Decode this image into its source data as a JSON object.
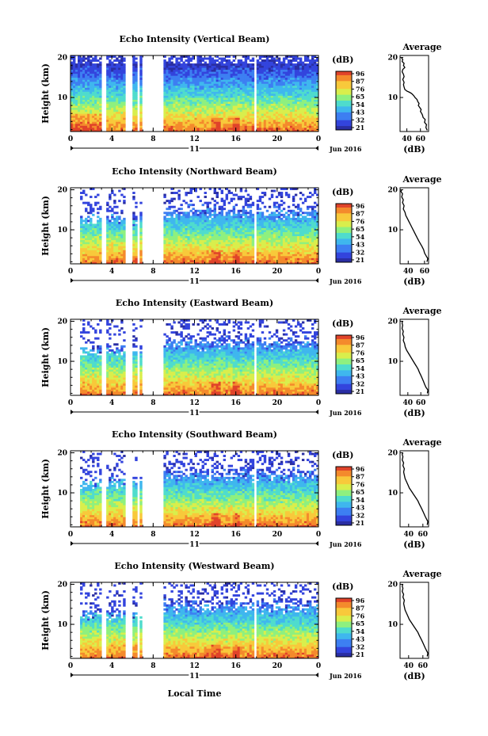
{
  "chart_data": [
    {
      "type": "heatmap",
      "title": "Echo Intensity (Vertical Beam)",
      "ylabel": "Height (km)",
      "x_ticks": [
        "0",
        "4",
        "8",
        "12",
        "16",
        "20",
        "0"
      ],
      "y_ticks": [
        "10",
        "20"
      ],
      "xlim": [
        0,
        24
      ],
      "ylim": [
        1.5,
        20.5
      ],
      "date_day": "11",
      "date_label": "Jun 2016",
      "colorbar": {
        "unit": "(dB)",
        "ticks": [
          "96",
          "87",
          "76",
          "65",
          "54",
          "43",
          "32",
          "21"
        ]
      },
      "missing_ranges": [
        [
          3.0,
          3.5
        ],
        [
          5.2,
          5.9
        ],
        [
          6.4,
          6.7
        ],
        [
          7.0,
          9.0
        ],
        [
          17.8,
          18.1
        ]
      ],
      "profile": {
        "title": "Average",
        "xlabel": "(dB)",
        "x_ticks": [
          "40",
          "60"
        ],
        "y_ticks": [
          "10",
          "20"
        ],
        "xlim": [
          30,
          72
        ],
        "points": [
          [
            70,
            1.8
          ],
          [
            68,
            2.5
          ],
          [
            69,
            3.2
          ],
          [
            66,
            3.8
          ],
          [
            67,
            4.5
          ],
          [
            64,
            5
          ],
          [
            63,
            5.6
          ],
          [
            62,
            6
          ],
          [
            60,
            6.5
          ],
          [
            61,
            7
          ],
          [
            59,
            7.5
          ],
          [
            57,
            8
          ],
          [
            58,
            8.5
          ],
          [
            56,
            9
          ],
          [
            55,
            9.5
          ],
          [
            52,
            10
          ],
          [
            50,
            10.5
          ],
          [
            47,
            11
          ],
          [
            44,
            11.3
          ],
          [
            40,
            11.6
          ],
          [
            37,
            12
          ],
          [
            36,
            12.6
          ],
          [
            35,
            13.2
          ],
          [
            36,
            13.8
          ],
          [
            34,
            14.5
          ],
          [
            36,
            15.2
          ],
          [
            35,
            15.8
          ],
          [
            33,
            16.4
          ],
          [
            34,
            17
          ],
          [
            37,
            17.5
          ],
          [
            35,
            18
          ],
          [
            36,
            18.5
          ],
          [
            33,
            19
          ],
          [
            34,
            19.5
          ],
          [
            32,
            20
          ]
        ]
      }
    },
    {
      "type": "heatmap",
      "title": "Echo Intensity (Northward Beam)",
      "ylabel": "Height (km)",
      "x_ticks": [
        "0",
        "4",
        "8",
        "12",
        "16",
        "20",
        "0"
      ],
      "y_ticks": [
        "10",
        "20"
      ],
      "xlim": [
        0,
        24
      ],
      "ylim": [
        1.5,
        20.5
      ],
      "date_day": "11",
      "date_label": "Jun 2016",
      "colorbar": {
        "unit": "(dB)",
        "ticks": [
          "96",
          "87",
          "76",
          "65",
          "54",
          "43",
          "32",
          "21"
        ]
      },
      "missing_ranges": [
        [
          3.0,
          3.5
        ],
        [
          5.2,
          5.9
        ],
        [
          6.4,
          6.7
        ],
        [
          7.0,
          9.0
        ],
        [
          17.8,
          18.1
        ]
      ],
      "profile": {
        "title": "Average",
        "xlabel": "(dB)",
        "x_ticks": [
          "40",
          "60"
        ],
        "y_ticks": [
          "10",
          "20"
        ],
        "xlim": [
          30,
          65
        ],
        "points": [
          [
            63,
            2
          ],
          [
            64,
            2.8
          ],
          [
            62,
            3.5
          ],
          [
            60,
            4.2
          ],
          [
            59,
            5
          ],
          [
            57,
            5.8
          ],
          [
            55,
            6.5
          ],
          [
            53,
            7.2
          ],
          [
            51,
            8
          ],
          [
            49,
            8.8
          ],
          [
            47,
            9.6
          ],
          [
            45,
            10.4
          ],
          [
            43,
            11.2
          ],
          [
            41,
            12
          ],
          [
            39,
            12.8
          ],
          [
            37,
            13.6
          ],
          [
            36,
            14.4
          ],
          [
            34,
            15.2
          ],
          [
            35,
            16
          ],
          [
            33,
            16.8
          ],
          [
            34,
            17.5
          ],
          [
            32,
            18.2
          ],
          [
            33,
            19
          ],
          [
            31,
            19.6
          ],
          [
            32,
            20
          ]
        ]
      }
    },
    {
      "type": "heatmap",
      "title": "Echo Intensity (Eastward Beam)",
      "ylabel": "Height (km)",
      "x_ticks": [
        "0",
        "4",
        "8",
        "12",
        "16",
        "20",
        "0"
      ],
      "y_ticks": [
        "10",
        "20"
      ],
      "xlim": [
        0,
        24
      ],
      "ylim": [
        1.5,
        20.5
      ],
      "date_day": "11",
      "date_label": "Jun 2016",
      "colorbar": {
        "unit": "(dB)",
        "ticks": [
          "96",
          "87",
          "76",
          "65",
          "54",
          "43",
          "32",
          "21"
        ]
      },
      "missing_ranges": [
        [
          3.0,
          3.5
        ],
        [
          5.2,
          5.9
        ],
        [
          6.4,
          6.7
        ],
        [
          7.0,
          9.0
        ],
        [
          17.8,
          18.1
        ]
      ],
      "profile": {
        "title": "Average",
        "xlabel": "(dB)",
        "x_ticks": [
          "40",
          "60"
        ],
        "y_ticks": [
          "10",
          "20"
        ],
        "xlim": [
          28,
          72
        ],
        "points": [
          [
            70,
            2
          ],
          [
            71,
            2.8
          ],
          [
            68,
            3.5
          ],
          [
            66,
            4.2
          ],
          [
            64,
            5
          ],
          [
            62,
            5.8
          ],
          [
            60,
            6.5
          ],
          [
            58,
            7.2
          ],
          [
            56,
            8
          ],
          [
            53,
            8.8
          ],
          [
            50,
            9.6
          ],
          [
            47,
            10.4
          ],
          [
            44,
            11.2
          ],
          [
            41,
            12
          ],
          [
            38,
            12.8
          ],
          [
            36,
            13.6
          ],
          [
            35,
            14.4
          ],
          [
            33,
            15.2
          ],
          [
            34,
            16
          ],
          [
            32,
            16.8
          ],
          [
            33,
            17.5
          ],
          [
            31,
            18.2
          ],
          [
            32,
            19
          ],
          [
            31,
            19.6
          ],
          [
            32,
            20
          ]
        ]
      }
    },
    {
      "type": "heatmap",
      "title": "Echo Intensity (Southward Beam)",
      "ylabel": "Height (km)",
      "x_ticks": [
        "0",
        "4",
        "8",
        "12",
        "16",
        "20",
        "0"
      ],
      "y_ticks": [
        "10",
        "20"
      ],
      "xlim": [
        0,
        24
      ],
      "ylim": [
        1.5,
        20.5
      ],
      "date_day": "11",
      "date_label": "Jun 2016",
      "colorbar": {
        "unit": "(dB)",
        "ticks": [
          "96",
          "87",
          "76",
          "65",
          "54",
          "43",
          "32",
          "21"
        ]
      },
      "missing_ranges": [
        [
          3.0,
          3.5
        ],
        [
          5.2,
          5.9
        ],
        [
          6.4,
          6.7
        ],
        [
          7.0,
          9.0
        ],
        [
          17.8,
          18.1
        ]
      ],
      "profile": {
        "title": "Average",
        "xlabel": "(dB)",
        "x_ticks": [
          "40",
          "60"
        ],
        "y_ticks": [
          "10",
          "20"
        ],
        "xlim": [
          28,
          68
        ],
        "points": [
          [
            66,
            2
          ],
          [
            67,
            2.8
          ],
          [
            65,
            3.5
          ],
          [
            63,
            4.2
          ],
          [
            61,
            5
          ],
          [
            59,
            5.8
          ],
          [
            57,
            6.5
          ],
          [
            55,
            7.2
          ],
          [
            53,
            8
          ],
          [
            50,
            8.8
          ],
          [
            47,
            9.6
          ],
          [
            44,
            10.4
          ],
          [
            41,
            11.2
          ],
          [
            39,
            12
          ],
          [
            37,
            12.8
          ],
          [
            35,
            13.6
          ],
          [
            34,
            14.4
          ],
          [
            33,
            15.2
          ],
          [
            34,
            16
          ],
          [
            32,
            16.8
          ],
          [
            33,
            17.5
          ],
          [
            31,
            18.2
          ],
          [
            32,
            19
          ],
          [
            31,
            19.6
          ],
          [
            32,
            20
          ]
        ]
      }
    },
    {
      "type": "heatmap",
      "title": "Echo Intensity (Westward Beam)",
      "ylabel": "Height (km)",
      "x_ticks": [
        "0",
        "4",
        "8",
        "12",
        "16",
        "20",
        "0"
      ],
      "y_ticks": [
        "10",
        "20"
      ],
      "xlim": [
        0,
        24
      ],
      "ylim": [
        1.5,
        20.5
      ],
      "date_day": "11",
      "date_label": "Jun 2016",
      "colorbar": {
        "unit": "(dB)",
        "ticks": [
          "96",
          "87",
          "76",
          "65",
          "54",
          "43",
          "32",
          "21"
        ]
      },
      "missing_ranges": [
        [
          3.0,
          3.5
        ],
        [
          5.2,
          5.9
        ],
        [
          6.4,
          6.7
        ],
        [
          7.0,
          9.0
        ],
        [
          17.8,
          18.1
        ]
      ],
      "profile": {
        "title": "Average",
        "xlabel": "(dB)",
        "x_ticks": [
          "40",
          "60"
        ],
        "y_ticks": [
          "10",
          "20"
        ],
        "xlim": [
          28,
          68
        ],
        "points": [
          [
            66,
            2
          ],
          [
            67,
            2.8
          ],
          [
            65,
            3.5
          ],
          [
            63,
            4.2
          ],
          [
            61,
            5
          ],
          [
            59,
            5.8
          ],
          [
            57,
            6.5
          ],
          [
            55,
            7.2
          ],
          [
            53,
            8
          ],
          [
            50,
            8.8
          ],
          [
            47,
            9.6
          ],
          [
            44,
            10.4
          ],
          [
            41,
            11.2
          ],
          [
            39,
            12
          ],
          [
            37,
            12.8
          ],
          [
            35,
            13.6
          ],
          [
            34,
            14.4
          ],
          [
            33,
            15.2
          ],
          [
            34,
            16
          ],
          [
            32,
            16.8
          ],
          [
            33,
            17.5
          ],
          [
            31,
            18.2
          ],
          [
            32,
            19
          ],
          [
            31,
            19.6
          ],
          [
            32,
            20
          ]
        ]
      }
    }
  ],
  "shared": {
    "xlabel": "Local Time"
  },
  "colors": {
    "colormap": [
      "#2a2ea3",
      "#3344dd",
      "#3d7ff2",
      "#3fb7ee",
      "#4fdccd",
      "#8ef07f",
      "#d9ee4c",
      "#f8c93b",
      "#f48a2c",
      "#e0432a"
    ]
  }
}
